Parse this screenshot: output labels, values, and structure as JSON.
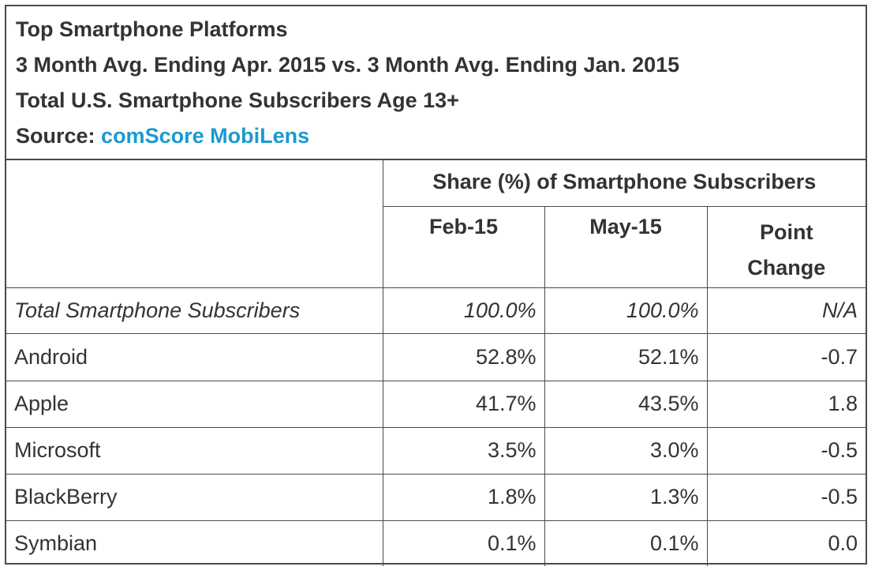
{
  "header": {
    "title": "Top Smartphone Platforms",
    "subtitle": "3 Month Avg. Ending Apr. 2015 vs. 3 Month Avg. Ending Jan. 2015",
    "population": "Total U.S. Smartphone Subscribers Age 13+",
    "source_label": "Source:",
    "source_link": "comScore MobiLens"
  },
  "colors": {
    "text": "#333333",
    "link": "#1a9ad0",
    "border": "#4a4a4a"
  },
  "table": {
    "group_header": "Share (%) of Smartphone Subscribers",
    "columns": [
      "Feb-15",
      "May-15",
      "Point Change"
    ],
    "point_change_lines": [
      "Point",
      "Change"
    ],
    "rows": [
      {
        "label": "Total Smartphone Subscribers",
        "feb": "100.0%",
        "may": "100.0%",
        "change": "N/A"
      },
      {
        "label": "Android",
        "feb": "52.8%",
        "may": "52.1%",
        "change": "-0.7"
      },
      {
        "label": "Apple",
        "feb": "41.7%",
        "may": "43.5%",
        "change": "1.8"
      },
      {
        "label": "Microsoft",
        "feb": "3.5%",
        "may": "3.0%",
        "change": "-0.5"
      },
      {
        "label": "BlackBerry",
        "feb": "1.8%",
        "may": "1.3%",
        "change": "-0.5"
      },
      {
        "label": "Symbian",
        "feb": "0.1%",
        "may": "0.1%",
        "change": "0.0"
      }
    ]
  },
  "chart_data": {
    "type": "table",
    "title": "Top Smartphone Platforms",
    "subtitle": "3 Month Avg. Ending Apr. 2015 vs. 3 Month Avg. Ending Jan. 2015",
    "columns": [
      "Feb-15",
      "May-15",
      "Point Change"
    ],
    "categories": [
      "Total Smartphone Subscribers",
      "Android",
      "Apple",
      "Microsoft",
      "BlackBerry",
      "Symbian"
    ],
    "series": [
      {
        "name": "Feb-15",
        "values": [
          100.0,
          52.8,
          41.7,
          3.5,
          1.8,
          0.1
        ]
      },
      {
        "name": "May-15",
        "values": [
          100.0,
          52.1,
          43.5,
          3.0,
          1.3,
          0.1
        ]
      },
      {
        "name": "Point Change",
        "values": [
          null,
          -0.7,
          1.8,
          -0.5,
          -0.5,
          0.0
        ]
      }
    ]
  }
}
